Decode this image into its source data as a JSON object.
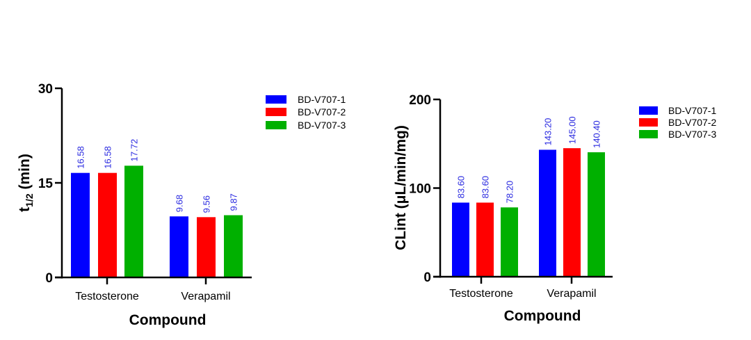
{
  "chart_data": [
    {
      "type": "bar",
      "ylabel_main": "t",
      "ylabel_sub": "1/2",
      "ylabel_rest": " (min)",
      "xlabel": "Compound",
      "categories": [
        "Testosterone",
        "Verapamil"
      ],
      "ylim": [
        0,
        30
      ],
      "yticks": [
        "0",
        "15",
        "30"
      ],
      "ytick_values": [
        0,
        15,
        30
      ],
      "grid": false,
      "legend_position": "top-right",
      "series": [
        {
          "name": "BD-V707-1",
          "color": "#0000ff",
          "values": [
            16.58,
            9.68
          ],
          "labels": [
            "16.58",
            "9.68"
          ]
        },
        {
          "name": "BD-V707-2",
          "color": "#ff0000",
          "values": [
            16.58,
            9.56
          ],
          "labels": [
            "16.58",
            "9.56"
          ]
        },
        {
          "name": "BD-V707-3",
          "color": "#00b000",
          "values": [
            17.72,
            9.87
          ],
          "labels": [
            "17.72",
            "9.87"
          ]
        }
      ]
    },
    {
      "type": "bar",
      "ylabel_main": "CLint (μL/min/mg)",
      "ylabel_sub": "",
      "ylabel_rest": "",
      "xlabel": "Compound",
      "categories": [
        "Testosterone",
        "Verapamil"
      ],
      "ylim": [
        0,
        200
      ],
      "yticks": [
        "0",
        "100",
        "200"
      ],
      "ytick_values": [
        0,
        100,
        200
      ],
      "grid": false,
      "legend_position": "top-right",
      "series": [
        {
          "name": "BD-V707-1",
          "color": "#0000ff",
          "values": [
            83.6,
            143.2
          ],
          "labels": [
            "83.60",
            "143.20"
          ]
        },
        {
          "name": "BD-V707-2",
          "color": "#ff0000",
          "values": [
            83.6,
            145.0
          ],
          "labels": [
            "83.60",
            "145.00"
          ]
        },
        {
          "name": "BD-V707-3",
          "color": "#00b000",
          "values": [
            78.2,
            140.4
          ],
          "labels": [
            "78.20",
            "140.40"
          ]
        }
      ]
    }
  ],
  "value_label_color": "#2a2ae0"
}
